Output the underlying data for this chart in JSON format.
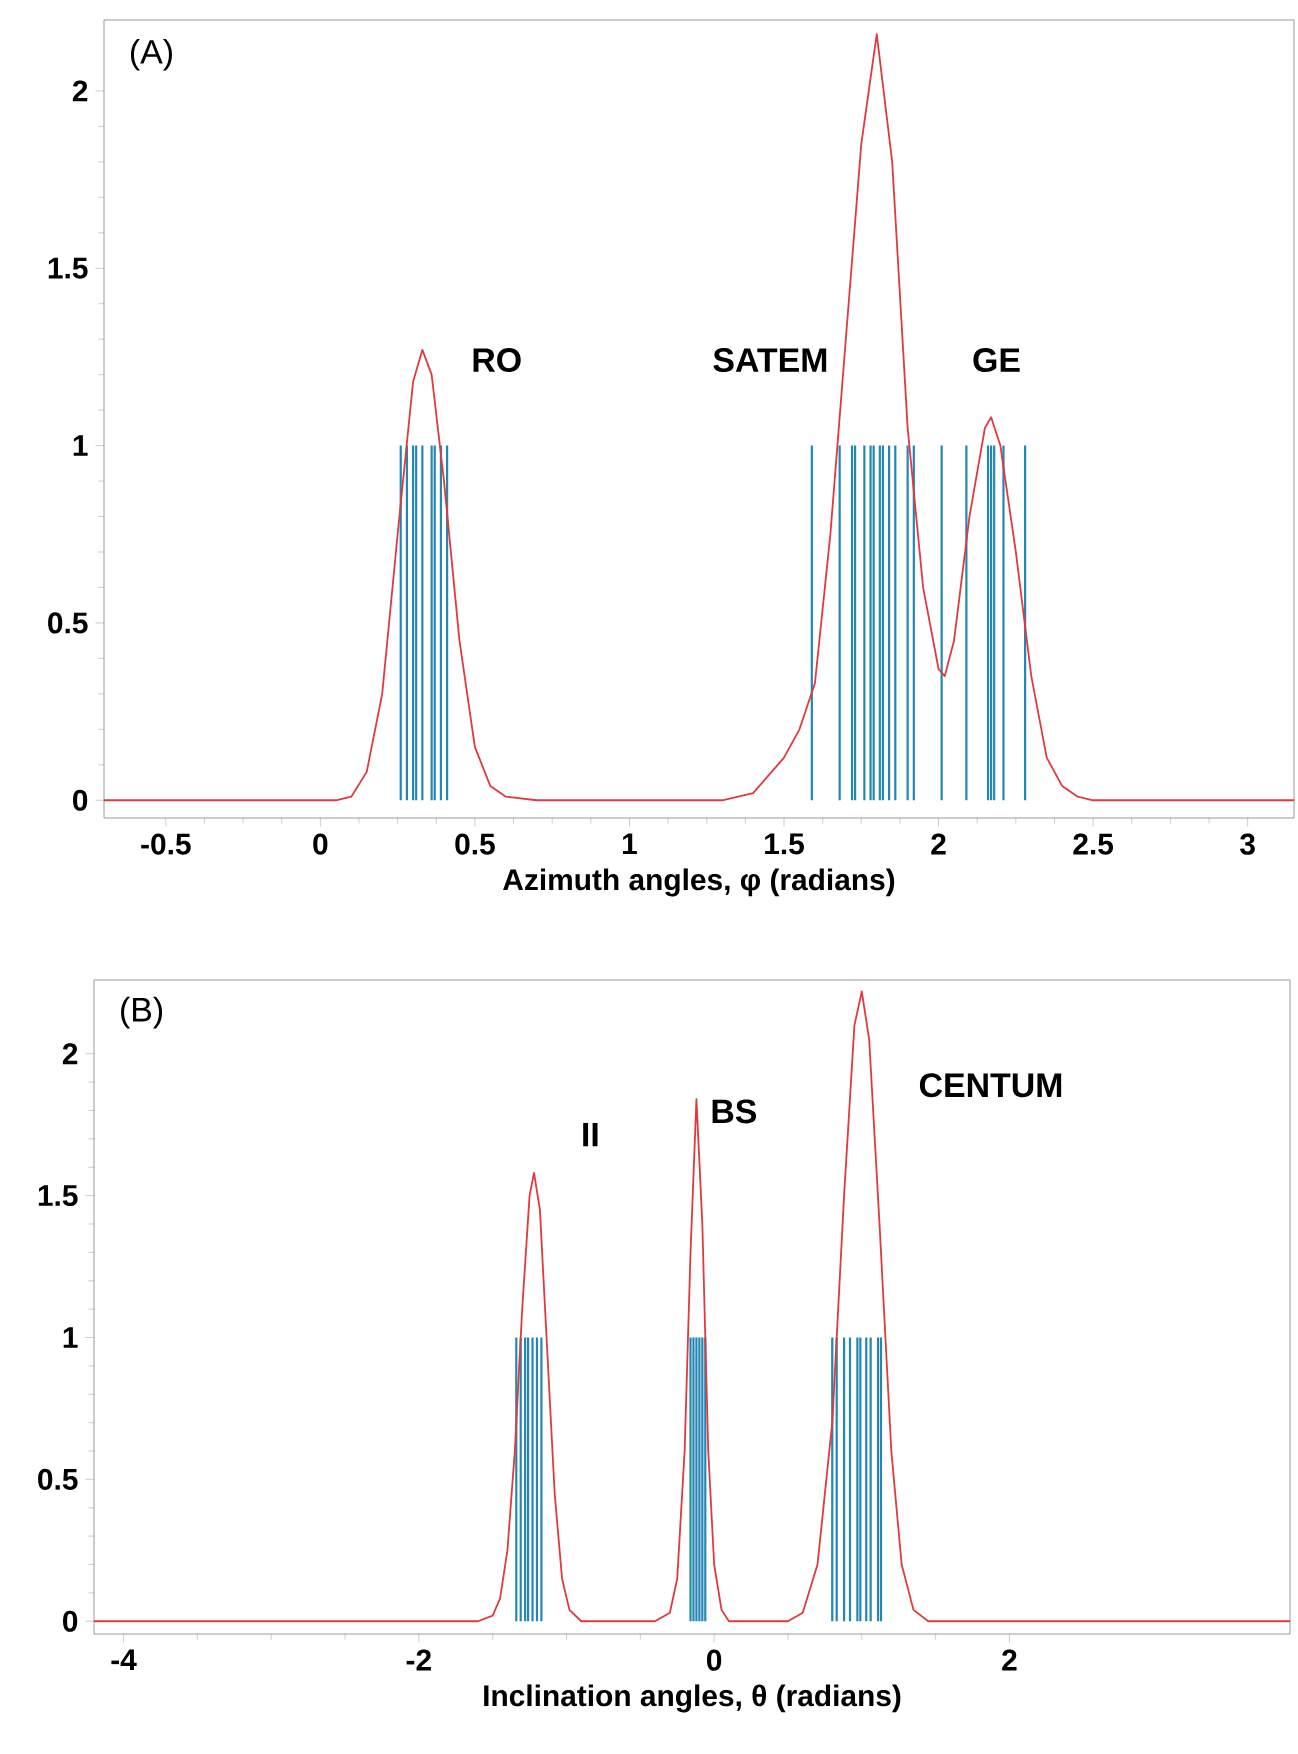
{
  "chart_data": [
    {
      "type": "line",
      "title": "(A)",
      "xlabel": "Azimuth angles,  φ  (radians)",
      "xlim": [
        -0.7,
        3.15
      ],
      "ylim": [
        -0.05,
        2.2
      ],
      "xticks": [
        -0.5,
        0,
        0.5,
        1,
        1.5,
        2,
        2.5,
        3
      ],
      "yticks": [
        0,
        0.5,
        1,
        1.5,
        2
      ],
      "series": [
        {
          "type": "bar",
          "color": "#2387b2",
          "x": [
            0.26,
            0.28,
            0.3,
            0.31,
            0.33,
            0.36,
            0.37,
            0.39,
            0.41,
            1.59,
            1.68,
            1.72,
            1.73,
            1.76,
            1.78,
            1.79,
            1.81,
            1.82,
            1.84,
            1.86,
            1.9,
            1.92,
            2.01,
            2.09,
            2.16,
            2.17,
            2.18,
            2.21,
            2.28
          ],
          "values": [
            1,
            1,
            1,
            1,
            1,
            1,
            1,
            1,
            1,
            1,
            1,
            1,
            1,
            1,
            1,
            1,
            1,
            1,
            1,
            1,
            1,
            1,
            1,
            1,
            1,
            1,
            1,
            1,
            1
          ]
        },
        {
          "color": "#e0393e",
          "x": [
            -0.7,
            0.05,
            0.1,
            0.15,
            0.2,
            0.25,
            0.3,
            0.33,
            0.36,
            0.4,
            0.45,
            0.5,
            0.55,
            0.6,
            0.7,
            1.3,
            1.4,
            1.5,
            1.55,
            1.6,
            1.65,
            1.7,
            1.75,
            1.8,
            1.85,
            1.9,
            1.95,
            2.0,
            2.02,
            2.05,
            2.1,
            2.15,
            2.17,
            2.2,
            2.25,
            2.3,
            2.35,
            2.4,
            2.45,
            2.5,
            3.15
          ],
          "values": [
            0,
            0,
            0.01,
            0.08,
            0.3,
            0.75,
            1.18,
            1.27,
            1.2,
            0.9,
            0.45,
            0.15,
            0.04,
            0.01,
            0,
            0,
            0.02,
            0.12,
            0.2,
            0.33,
            0.75,
            1.3,
            1.85,
            2.16,
            1.8,
            1.05,
            0.6,
            0.37,
            0.35,
            0.45,
            0.8,
            1.05,
            1.08,
            1.0,
            0.7,
            0.35,
            0.12,
            0.04,
            0.01,
            0,
            0
          ]
        }
      ],
      "annotations": [
        "RO",
        "SATEM",
        "GE"
      ]
    },
    {
      "type": "line",
      "title": "(B)",
      "xlabel": "Inclination angles, θ (radians)",
      "xlim": [
        -4.2,
        3.9
      ],
      "ylim": [
        -0.045,
        2.26
      ],
      "xticks": [
        -4,
        -2,
        0,
        2
      ],
      "yticks": [
        0,
        0.5,
        1,
        1.5,
        2
      ],
      "series": [
        {
          "type": "bar",
          "color": "#2387b2",
          "x": [
            -1.34,
            -1.31,
            -1.28,
            -1.26,
            -1.23,
            -1.2,
            -1.17,
            -0.16,
            -0.14,
            -0.12,
            -0.1,
            -0.08,
            -0.06,
            0.8,
            0.83,
            0.88,
            0.92,
            0.97,
            0.99,
            1.03,
            1.06,
            1.11,
            1.13
          ],
          "values": [
            1,
            1,
            1,
            1,
            1,
            1,
            1,
            1,
            1,
            1,
            1,
            1,
            1,
            1,
            1,
            1,
            1,
            1,
            1,
            1,
            1,
            1,
            1
          ]
        },
        {
          "color": "#e0393e",
          "x": [
            -4.2,
            -1.6,
            -1.5,
            -1.45,
            -1.4,
            -1.35,
            -1.3,
            -1.25,
            -1.22,
            -1.18,
            -1.13,
            -1.08,
            -1.03,
            -0.98,
            -0.9,
            -0.4,
            -0.3,
            -0.25,
            -0.2,
            -0.16,
            -0.12,
            -0.08,
            -0.04,
            0.0,
            0.05,
            0.1,
            0.5,
            0.6,
            0.7,
            0.8,
            0.88,
            0.95,
            1.0,
            1.05,
            1.12,
            1.2,
            1.27,
            1.35,
            1.45,
            3.9
          ],
          "values": [
            0,
            0,
            0.02,
            0.08,
            0.25,
            0.6,
            1.1,
            1.5,
            1.58,
            1.45,
            0.95,
            0.45,
            0.15,
            0.04,
            0,
            0,
            0.03,
            0.15,
            0.6,
            1.3,
            1.84,
            1.4,
            0.6,
            0.2,
            0.04,
            0,
            0,
            0.03,
            0.2,
            0.7,
            1.5,
            2.1,
            2.22,
            2.05,
            1.4,
            0.6,
            0.2,
            0.04,
            0,
            0
          ]
        }
      ],
      "annotations": [
        "II",
        "BS",
        "CENTUM"
      ]
    }
  ]
}
